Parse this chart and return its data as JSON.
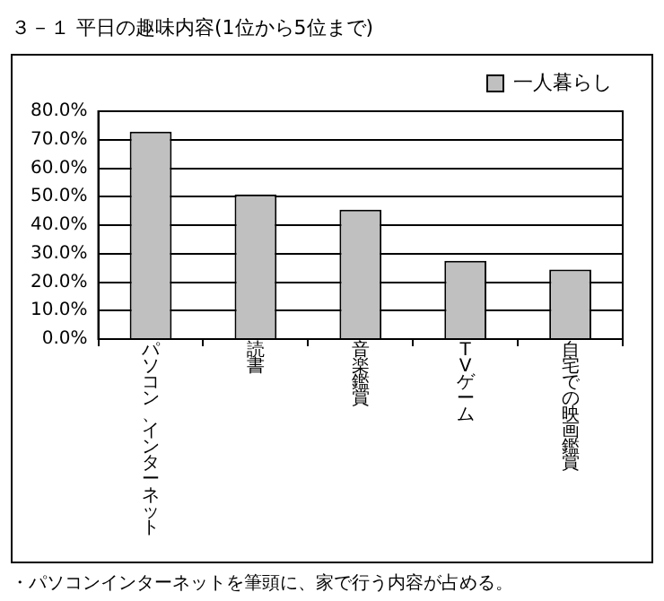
{
  "chart_data": {
    "type": "bar",
    "title": "３－１ 平日の趣味内容(1位から5位まで)",
    "categories": [
      "パソコン、インターネット",
      "読書",
      "音楽鑑賞",
      "TVゲーム",
      "自宅での映画鑑賞"
    ],
    "series": [
      {
        "name": "一人暮らし",
        "color": "#c0c0c0",
        "values": [
          72.8,
          50.8,
          45.4,
          27.5,
          24.4
        ]
      }
    ],
    "ylim": [
      0,
      80
    ],
    "yticks": [
      {
        "value": 0,
        "label": "0.0%"
      },
      {
        "value": 10,
        "label": "10.0%"
      },
      {
        "value": 20,
        "label": "20.0%"
      },
      {
        "value": 30,
        "label": "30.0%"
      },
      {
        "value": 40,
        "label": "40.0%"
      },
      {
        "value": 50,
        "label": "50.0%"
      },
      {
        "value": 60,
        "label": "60.0%"
      },
      {
        "value": 70,
        "label": "70.0%"
      },
      {
        "value": 80,
        "label": "80.0%"
      }
    ],
    "grid": "y",
    "legend": "top right",
    "annotations": [
      "・パソコンインターネットを筆頭に、家で行う内容が占める。"
    ]
  }
}
